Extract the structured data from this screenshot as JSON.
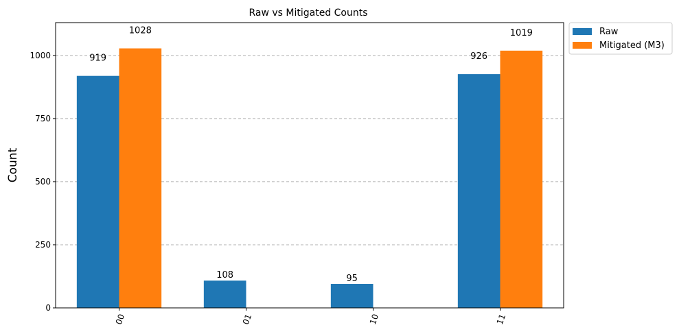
{
  "chart_data": {
    "type": "bar",
    "title": "Raw vs Mitigated Counts",
    "xlabel": "",
    "ylabel": "Count",
    "categories": [
      "00",
      "01",
      "10",
      "11"
    ],
    "series": [
      {
        "name": "Raw",
        "color": "#1f77b4",
        "values": [
          919,
          108,
          95,
          926
        ],
        "labels": [
          "919",
          "108",
          "95",
          "926"
        ]
      },
      {
        "name": "Mitigated (M3)",
        "color": "#ff7f0e",
        "values": [
          1028,
          0,
          0,
          1019
        ],
        "labels": [
          "1028",
          "",
          "",
          "1019"
        ]
      }
    ],
    "ylim": [
      0,
      1130
    ],
    "yticks": [
      0,
      250,
      500,
      750,
      1000
    ],
    "ytick_labels": [
      "0",
      "250",
      "500",
      "750",
      "1000"
    ],
    "xtick_rotation_deg": 70,
    "grid": "horizontal dashed",
    "legend_position": "outside-top-right"
  }
}
